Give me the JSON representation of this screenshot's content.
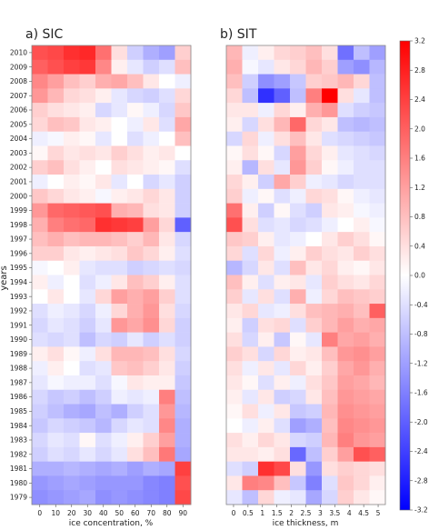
{
  "chart_data": {
    "type": "heatmap",
    "years": [
      2010,
      2009,
      2008,
      2007,
      2006,
      2005,
      2004,
      2003,
      2002,
      2001,
      2000,
      1999,
      1998,
      1997,
      1996,
      1995,
      1994,
      1993,
      1992,
      1991,
      1990,
      1989,
      1988,
      1987,
      1986,
      1985,
      1984,
      1983,
      1982,
      1981,
      1980,
      1979
    ],
    "ylabel": "years",
    "colorbar": {
      "min": -3.2,
      "max": 3.2,
      "ticks": [
        "3.2",
        "2.8",
        "2.4",
        "2.0",
        "1.6",
        "1.2",
        "0.8",
        "0.4",
        "0.0",
        "-0.4",
        "-0.8",
        "-1.2",
        "-1.6",
        "-2.0",
        "-2.4",
        "-2.8",
        "-3.2"
      ],
      "colors": {
        "neg": "#0000ff",
        "mid": "#ffffff",
        "pos": "#ff0000"
      }
    },
    "panels": [
      {
        "title": "a) SIC",
        "xlabel": "ice concentration, %",
        "xticks": [
          "0",
          "10",
          "20",
          "30",
          "40",
          "50",
          "60",
          "70",
          "80",
          "90"
        ],
        "z": [
          [
            2.2,
            2.3,
            2.6,
            2.7,
            1.8,
            0.4,
            -0.6,
            -1.0,
            -1.2,
            0.6
          ],
          [
            2.0,
            2.2,
            2.4,
            2.5,
            1.5,
            0.2,
            -0.3,
            -0.6,
            -0.4,
            0.8
          ],
          [
            1.5,
            1.2,
            0.8,
            0.6,
            1.0,
            1.1,
            0.8,
            0.3,
            0.0,
            -0.2
          ],
          [
            1.3,
            0.9,
            0.5,
            0.4,
            0.2,
            -0.3,
            -0.5,
            -0.6,
            -0.4,
            0.5
          ],
          [
            0.6,
            0.4,
            0.3,
            0.2,
            -0.5,
            -0.3,
            0.1,
            -0.2,
            -0.5,
            0.7
          ],
          [
            0.5,
            0.8,
            0.7,
            0.3,
            0.2,
            0.0,
            -0.2,
            0.3,
            -0.4,
            1.1
          ],
          [
            -0.2,
            -0.1,
            0.2,
            0.1,
            -0.3,
            0.0,
            -0.4,
            -0.2,
            0.0,
            0.8
          ],
          [
            0.1,
            0.5,
            0.3,
            0.4,
            0.3,
            0.6,
            0.4,
            0.2,
            0.3,
            0.0
          ],
          [
            0.6,
            0.8,
            0.4,
            0.2,
            0.0,
            0.4,
            0.3,
            0.2,
            0.1,
            -0.4
          ],
          [
            -0.2,
            0.0,
            0.2,
            0.1,
            0.3,
            -0.3,
            0.0,
            -0.5,
            -0.3,
            -0.6
          ],
          [
            0.7,
            0.5,
            0.3,
            0.2,
            -0.1,
            0.2,
            0.3,
            0.5,
            0.3,
            -0.6
          ],
          [
            1.3,
            1.9,
            2.0,
            2.1,
            2.2,
            1.0,
            0.9,
            0.4,
            0.3,
            -0.6
          ],
          [
            1.0,
            1.6,
            1.8,
            1.9,
            2.6,
            2.5,
            2.4,
            1.2,
            0.5,
            -2.0
          ],
          [
            0.8,
            1.0,
            0.8,
            0.9,
            0.9,
            0.8,
            0.6,
            0.9,
            0.3,
            -0.5
          ],
          [
            0.6,
            0.6,
            0.3,
            0.2,
            0.3,
            0.4,
            0.7,
            0.5,
            0.2,
            -0.4
          ],
          [
            -0.1,
            0.0,
            0.2,
            -0.3,
            -0.4,
            -0.4,
            -0.6,
            -0.5,
            -0.4,
            -0.5
          ],
          [
            0.2,
            -0.2,
            0.0,
            -0.4,
            -0.2,
            0.3,
            0.8,
            0.6,
            0.2,
            -0.4
          ],
          [
            0.0,
            0.3,
            0.0,
            -0.3,
            0.5,
            1.2,
            1.0,
            1.2,
            0.6,
            -0.4
          ],
          [
            -0.4,
            -0.2,
            -0.3,
            -0.5,
            -0.2,
            0.5,
            1.0,
            1.3,
            0.4,
            -0.5
          ],
          [
            -0.5,
            -0.3,
            -0.4,
            -0.6,
            -0.3,
            1.3,
            1.1,
            1.4,
            0.5,
            -0.6
          ],
          [
            -0.4,
            -0.5,
            -0.4,
            -0.8,
            -0.5,
            -0.6,
            -0.3,
            -0.6,
            -0.4,
            -0.6
          ],
          [
            0.2,
            0.4,
            0.1,
            -0.2,
            0.4,
            0.9,
            0.9,
            0.8,
            0.4,
            -0.5
          ],
          [
            -0.2,
            0.2,
            0.0,
            -0.4,
            -0.3,
            0.7,
            0.8,
            0.6,
            0.3,
            -0.6
          ],
          [
            -0.3,
            -0.1,
            -0.2,
            -0.2,
            -0.4,
            -0.1,
            0.3,
            0.2,
            0.2,
            -0.7
          ],
          [
            -0.5,
            -0.7,
            -0.6,
            -0.8,
            -0.6,
            -0.2,
            -0.3,
            -0.2,
            1.6,
            -0.8
          ],
          [
            -0.6,
            -0.8,
            -1.0,
            -1.1,
            -0.8,
            -1.0,
            -0.6,
            -0.4,
            1.3,
            -0.9
          ],
          [
            -0.7,
            -0.5,
            -0.6,
            -0.7,
            -0.9,
            -0.5,
            -0.3,
            -0.4,
            1.5,
            -1.0
          ],
          [
            -0.5,
            -0.3,
            -0.4,
            0.1,
            -0.4,
            -0.2,
            0.2,
            0.6,
            1.2,
            -1.0
          ],
          [
            -0.6,
            -0.4,
            -0.5,
            -0.3,
            -0.5,
            -0.3,
            0.4,
            0.8,
            1.7,
            -1.1
          ],
          [
            -1.0,
            -1.0,
            -0.9,
            -1.0,
            -1.1,
            -1.0,
            -1.2,
            -1.0,
            -1.1,
            2.4
          ],
          [
            -1.3,
            -1.2,
            -1.1,
            -1.2,
            -1.3,
            -1.3,
            -1.3,
            -1.5,
            -1.6,
            2.2
          ],
          [
            -1.4,
            -1.3,
            -1.2,
            -1.1,
            -1.4,
            -1.3,
            -1.4,
            -1.5,
            -1.6,
            2.3
          ]
        ]
      },
      {
        "title": "b) SIT",
        "xlabel": "ice thickness, m",
        "xticks": [
          "0",
          "0.5",
          "1",
          "1.5",
          "2",
          "2.5",
          "3",
          "3.5",
          "4",
          "4.5",
          "5"
        ],
        "z": [
          [
            0.9,
            -0.2,
            0.2,
            0.5,
            0.6,
            0.8,
            0.4,
            -1.8,
            -0.8,
            -1.2
          ],
          [
            1.0,
            -0.1,
            -0.3,
            0.3,
            0.5,
            0.9,
            0.6,
            -1.2,
            -1.4,
            -0.9
          ],
          [
            0.8,
            -0.6,
            -1.4,
            -1.2,
            -0.7,
            0.6,
            0.7,
            0.9,
            0.5,
            -0.8
          ],
          [
            0.5,
            -0.8,
            -2.6,
            -2.0,
            -0.8,
            1.6,
            3.2,
            0.4,
            -0.3,
            -0.8
          ],
          [
            0.3,
            0.3,
            -0.2,
            0.5,
            0.2,
            1.0,
            1.3,
            -0.4,
            -0.6,
            -0.7
          ],
          [
            0.2,
            -0.5,
            0.4,
            0.9,
            1.9,
            0.5,
            0.3,
            -0.8,
            -0.9,
            -0.8
          ],
          [
            -0.5,
            0.5,
            -0.2,
            0.4,
            0.8,
            0.3,
            -0.4,
            -0.5,
            -0.6,
            -0.7
          ],
          [
            0.1,
            0.4,
            0.1,
            -0.5,
            1.2,
            0.5,
            0.2,
            -0.3,
            -0.4,
            -0.5
          ],
          [
            0.2,
            -0.9,
            0.4,
            -0.3,
            1.3,
            0.6,
            0.1,
            -0.2,
            -0.4,
            -0.4
          ],
          [
            0.5,
            0.2,
            -0.6,
            1.1,
            0.6,
            -0.2,
            -0.3,
            -0.5,
            -0.4,
            -0.4
          ],
          [
            0.6,
            -0.2,
            0.1,
            -0.4,
            -0.2,
            0.5,
            0.4,
            0.1,
            -0.2,
            -0.3
          ],
          [
            1.8,
            0.2,
            -0.6,
            0.1,
            -0.4,
            -0.6,
            0.3,
            0.2,
            -0.1,
            -0.2
          ],
          [
            2.2,
            0.4,
            -0.4,
            -0.3,
            -0.5,
            -0.4,
            -0.2,
            0.0,
            0.2,
            -0.1
          ],
          [
            0.7,
            0.6,
            0.2,
            -0.3,
            -0.2,
            0.0,
            0.3,
            0.6,
            0.4,
            0.1
          ],
          [
            0.5,
            -0.4,
            0.5,
            -0.2,
            0.2,
            0.6,
            0.4,
            0.3,
            0.6,
            0.4
          ],
          [
            -0.9,
            -0.5,
            0.3,
            -0.4,
            0.8,
            0.3,
            0.5,
            0.2,
            0.1,
            0.3
          ],
          [
            0.8,
            0.2,
            -0.4,
            0.2,
            0.3,
            -0.3,
            0.6,
            0.4,
            0.3,
            0.5
          ],
          [
            0.6,
            -0.3,
            0.4,
            -0.4,
            1.0,
            -0.2,
            0.5,
            0.8,
            0.7,
            0.6
          ],
          [
            0.3,
            0.5,
            -0.3,
            -0.2,
            0.4,
            0.8,
            0.9,
            1.0,
            0.8,
            2.0
          ],
          [
            0.2,
            -0.6,
            0.4,
            0.5,
            -0.4,
            0.6,
            0.9,
            1.2,
            1.0,
            1.1
          ],
          [
            0.4,
            -0.5,
            0.2,
            -0.7,
            0.1,
            -0.3,
            1.6,
            1.1,
            1.2,
            1.0
          ],
          [
            0.6,
            0.4,
            -0.5,
            0.5,
            0.2,
            0.3,
            0.8,
            1.3,
            1.4,
            1.2
          ],
          [
            0.4,
            -0.2,
            0.3,
            -0.3,
            0.5,
            0.2,
            0.6,
            1.1,
            1.3,
            1.0
          ],
          [
            0.3,
            0.1,
            -0.4,
            0.2,
            -0.2,
            0.4,
            0.7,
            1.2,
            1.1,
            0.9
          ],
          [
            0.2,
            -0.3,
            0.3,
            -0.6,
            -0.5,
            0.3,
            0.8,
            1.3,
            1.2,
            1.1
          ],
          [
            0.1,
            0.4,
            -0.2,
            0.3,
            -0.7,
            -0.6,
            0.9,
            1.4,
            1.3,
            1.2
          ],
          [
            0.0,
            -0.2,
            0.2,
            -0.4,
            -1.2,
            -1.0,
            0.8,
            1.5,
            1.4,
            1.3
          ],
          [
            0.4,
            0.2,
            0.5,
            0.3,
            -0.5,
            -0.6,
            0.9,
            1.6,
            1.3,
            1.2
          ],
          [
            0.3,
            0.3,
            0.2,
            0.4,
            -1.9,
            -0.8,
            0.6,
            1.2,
            2.2,
            2.0
          ],
          [
            -0.4,
            -0.6,
            2.6,
            2.3,
            0.4,
            -1.3,
            0.4,
            0.6,
            0.5,
            0.4
          ],
          [
            0.3,
            1.6,
            1.5,
            0.8,
            -0.7,
            -1.6,
            -0.4,
            0.7,
            0.5,
            0.2
          ],
          [
            -0.3,
            -0.8,
            0.5,
            -0.2,
            -0.3,
            -1.1,
            -0.5,
            0.6,
            0.3,
            0.1
          ]
        ]
      }
    ]
  }
}
